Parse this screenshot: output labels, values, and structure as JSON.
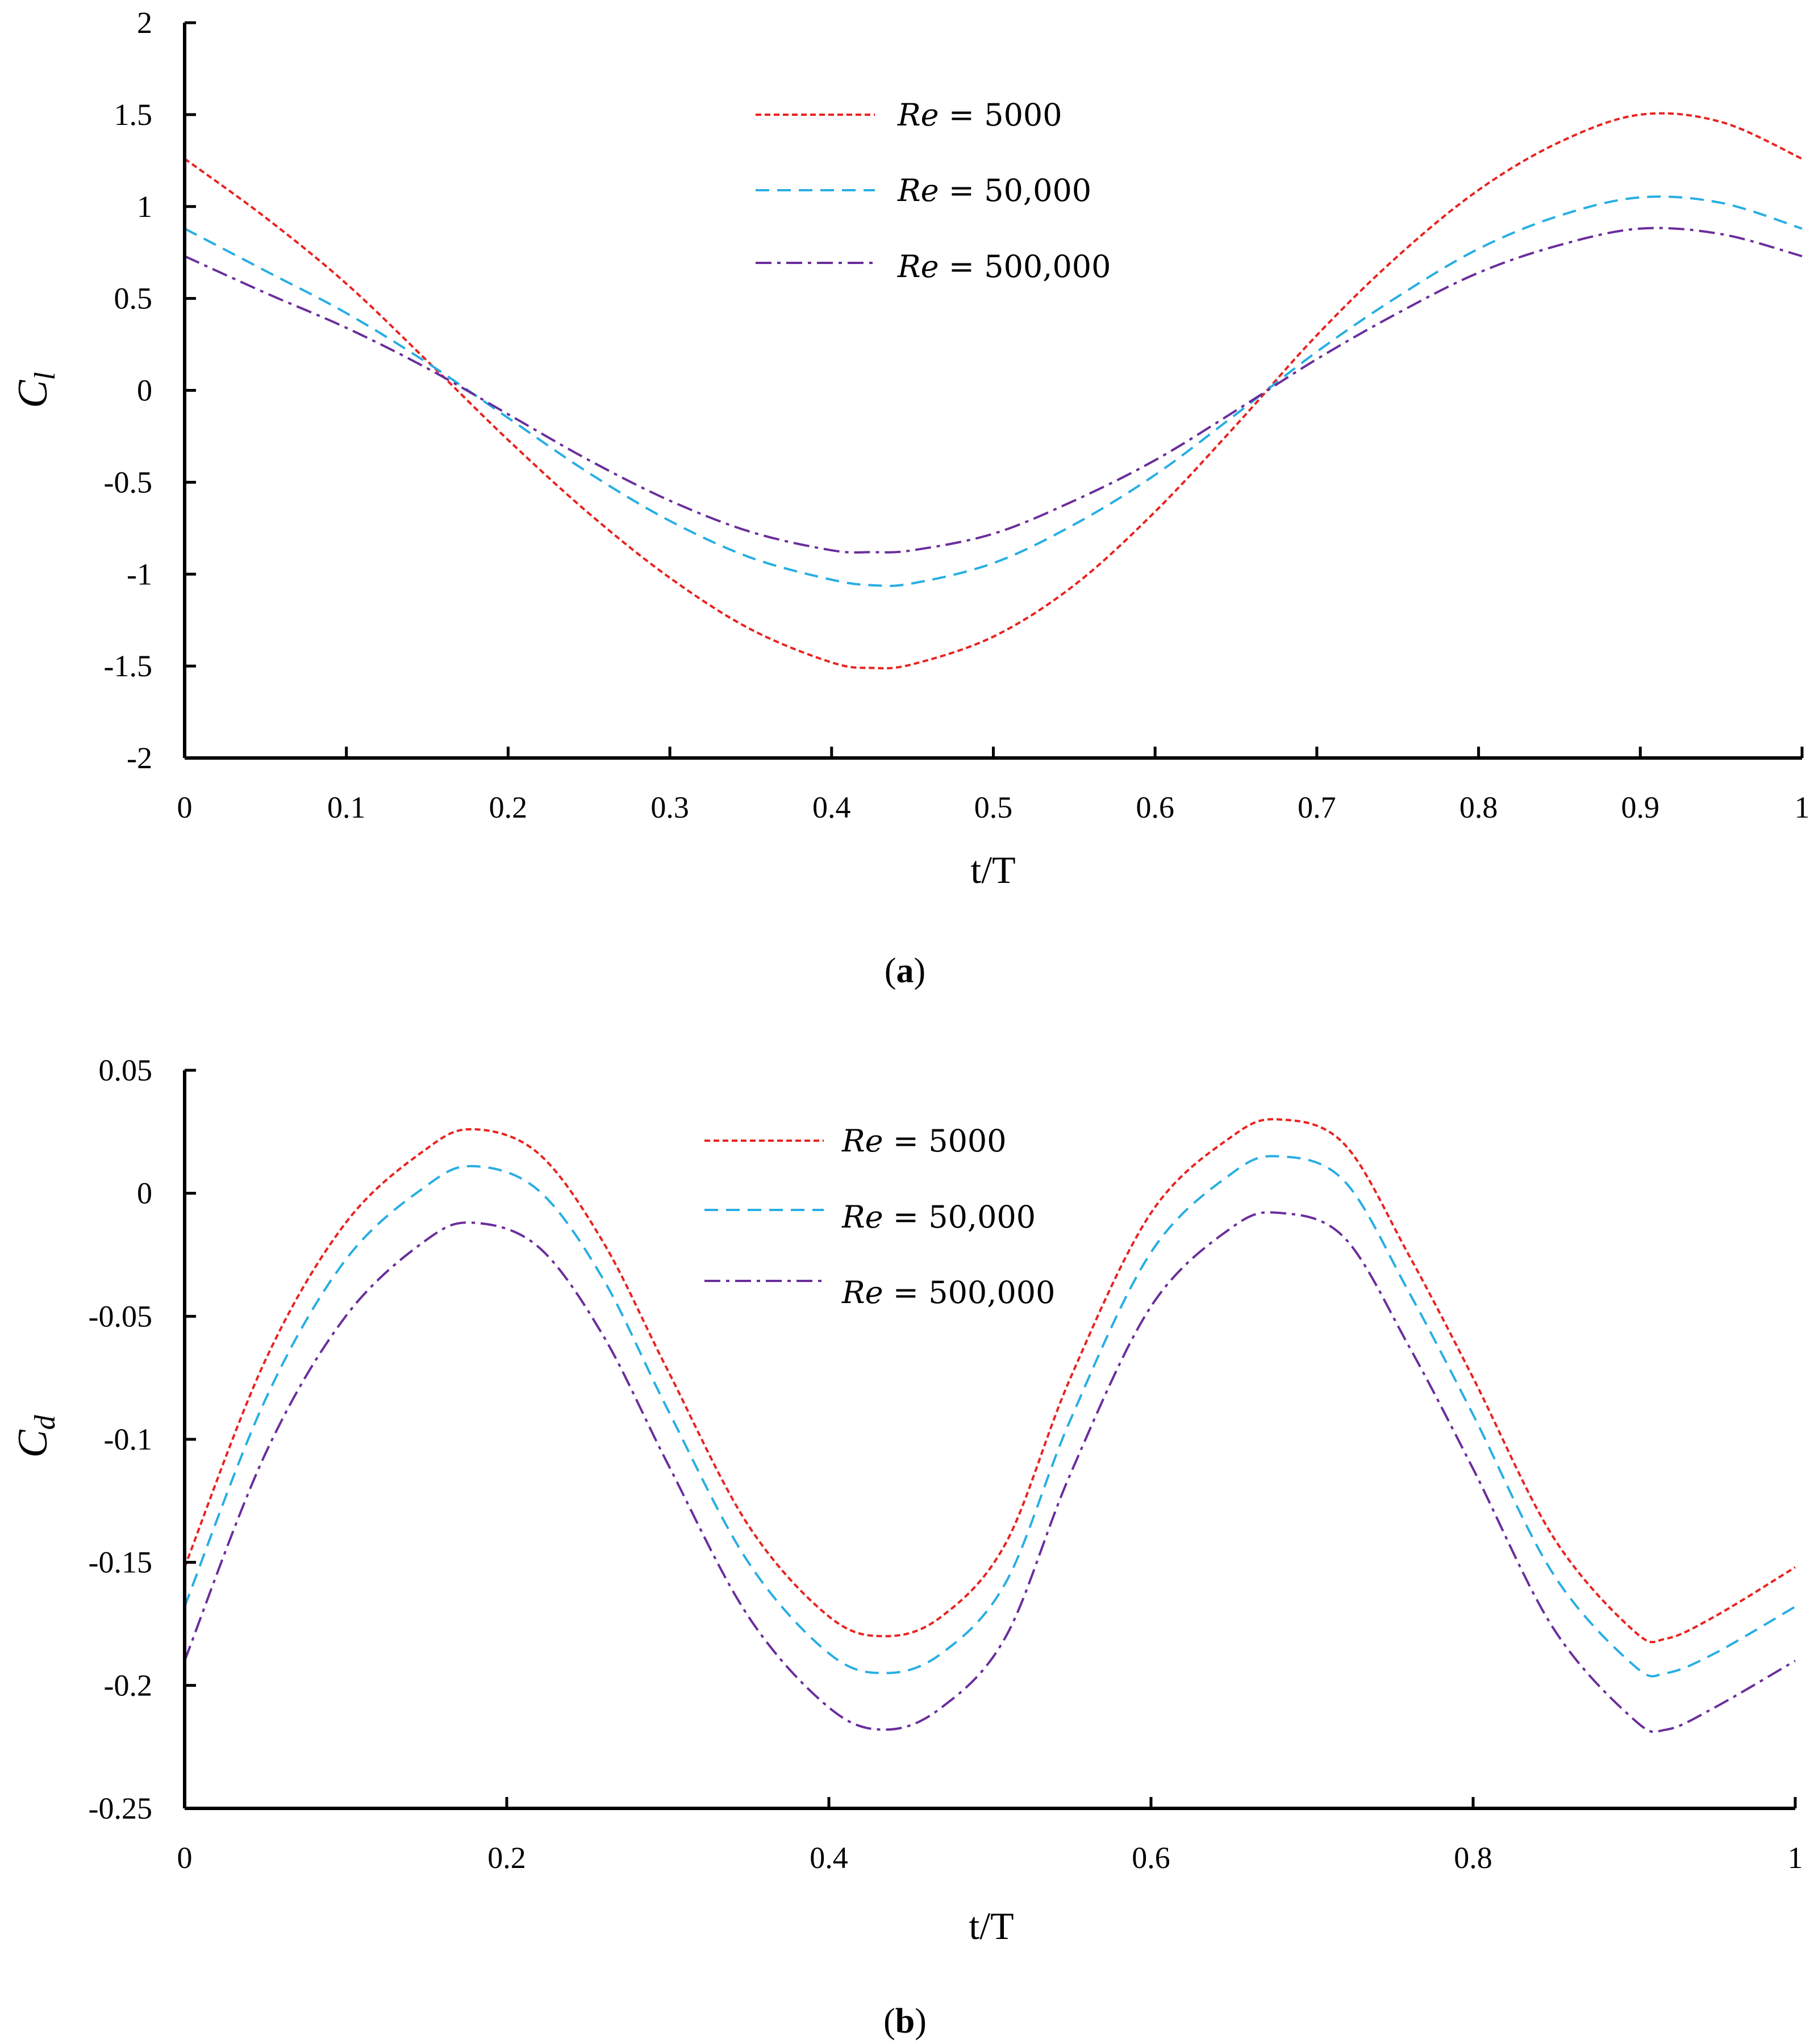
{
  "chart_data": [
    {
      "type": "line",
      "id": "a",
      "caption_letter": "a",
      "xlabel": "t/T",
      "ylabel_main": "C",
      "ylabel_sub": "l",
      "xlim": [
        0,
        1
      ],
      "ylim": [
        -2,
        2
      ],
      "xticks": [
        "0",
        "0.1",
        "0.2",
        "0.3",
        "0.4",
        "0.5",
        "0.6",
        "0.7",
        "0.8",
        "0.9",
        "1"
      ],
      "xtick_values": [
        0,
        0.1,
        0.2,
        0.3,
        0.4,
        0.5,
        0.6,
        0.7,
        0.8,
        0.9,
        1
      ],
      "yticks": [
        "2",
        "1.5",
        "1",
        "0.5",
        "0",
        "-0.5",
        "-1",
        "-1.5",
        "-2"
      ],
      "ytick_values": [
        2,
        1.5,
        1,
        0.5,
        0,
        -0.5,
        -1,
        -1.5,
        -2
      ],
      "x": [
        0,
        0.05,
        0.1,
        0.15,
        0.2,
        0.25,
        0.3,
        0.35,
        0.4,
        0.425,
        0.45,
        0.5,
        0.55,
        0.6,
        0.65,
        0.7,
        0.75,
        0.8,
        0.85,
        0.9,
        0.95,
        1
      ],
      "series": [
        {
          "name": "Re = 5000",
          "label_var": "Re",
          "label_val": "= 5000",
          "color": "#e8231f",
          "dash": "10,6",
          "values": [
            1.26,
            0.94,
            0.58,
            0.16,
            -0.27,
            -0.67,
            -1.02,
            -1.3,
            -1.48,
            -1.51,
            -1.49,
            -1.34,
            -1.06,
            -0.66,
            -0.19,
            0.3,
            0.73,
            1.09,
            1.35,
            1.5,
            1.46,
            1.26
          ]
        },
        {
          "name": "Re = 50,000",
          "label_var": "Re",
          "label_val": "= 50,000",
          "color": "#27aee3",
          "dash": "24,14",
          "values": [
            0.88,
            0.65,
            0.42,
            0.15,
            -0.15,
            -0.45,
            -0.71,
            -0.91,
            -1.03,
            -1.06,
            -1.05,
            -0.94,
            -0.73,
            -0.46,
            -0.13,
            0.21,
            0.51,
            0.77,
            0.95,
            1.05,
            1.02,
            0.88
          ]
        },
        {
          "name": "Re = 500,000",
          "label_var": "Re",
          "label_val": "= 500,000",
          "color": "#6a2d9c",
          "dash": "28,10,6,10",
          "values": [
            0.73,
            0.53,
            0.34,
            0.12,
            -0.13,
            -0.38,
            -0.6,
            -0.77,
            -0.87,
            -0.88,
            -0.87,
            -0.78,
            -0.6,
            -0.38,
            -0.11,
            0.17,
            0.42,
            0.64,
            0.79,
            0.88,
            0.85,
            0.73
          ]
        }
      ]
    },
    {
      "type": "line",
      "id": "b",
      "caption_letter": "b",
      "xlabel": "t/T",
      "ylabel_main": "C",
      "ylabel_sub": "d",
      "xlim": [
        0,
        1
      ],
      "ylim": [
        -0.25,
        0.05
      ],
      "xticks": [
        "0",
        "0.2",
        "0.4",
        "0.6",
        "0.8",
        "1"
      ],
      "xtick_values": [
        0,
        0.2,
        0.4,
        0.6,
        0.8,
        1
      ],
      "yticks": [
        "0.05",
        "0",
        "-0.05",
        "-0.1",
        "-0.15",
        "-0.2",
        "-0.25"
      ],
      "ytick_values": [
        0.05,
        0,
        -0.05,
        -0.1,
        -0.15,
        -0.2,
        -0.25
      ],
      "x": [
        0,
        0.05,
        0.1,
        0.15,
        0.18,
        0.22,
        0.26,
        0.3,
        0.35,
        0.4,
        0.435,
        0.47,
        0.51,
        0.55,
        0.6,
        0.65,
        0.68,
        0.72,
        0.76,
        0.8,
        0.85,
        0.9,
        0.92,
        0.95,
        1
      ],
      "series": [
        {
          "name": "Re = 5000",
          "label_var": "Re",
          "label_val": "= 5000",
          "color": "#e8231f",
          "dash": "10,6",
          "values": [
            -0.152,
            -0.068,
            -0.012,
            0.018,
            0.026,
            0.016,
            -0.02,
            -0.072,
            -0.135,
            -0.172,
            -0.18,
            -0.172,
            -0.142,
            -0.075,
            -0.008,
            0.023,
            0.03,
            0.02,
            -0.025,
            -0.075,
            -0.14,
            -0.178,
            -0.181,
            -0.172,
            -0.152
          ]
        },
        {
          "name": "Re = 50,000",
          "label_var": "Re",
          "label_val": "= 50,000",
          "color": "#27aee3",
          "dash": "24,14",
          "values": [
            -0.168,
            -0.084,
            -0.027,
            0.003,
            0.011,
            0.001,
            -0.035,
            -0.088,
            -0.15,
            -0.187,
            -0.195,
            -0.187,
            -0.158,
            -0.092,
            -0.024,
            0.008,
            0.015,
            0.005,
            -0.04,
            -0.09,
            -0.155,
            -0.192,
            -0.195,
            -0.187,
            -0.168
          ]
        },
        {
          "name": "Re = 500,000",
          "label_var": "Re",
          "label_val": "= 500,000",
          "color": "#6a2d9c",
          "dash": "28,10,6,10",
          "values": [
            -0.19,
            -0.106,
            -0.05,
            -0.019,
            -0.012,
            -0.022,
            -0.058,
            -0.11,
            -0.172,
            -0.209,
            -0.218,
            -0.209,
            -0.18,
            -0.114,
            -0.046,
            -0.014,
            -0.008,
            -0.018,
            -0.062,
            -0.112,
            -0.177,
            -0.214,
            -0.218,
            -0.209,
            -0.19
          ]
        }
      ]
    }
  ]
}
